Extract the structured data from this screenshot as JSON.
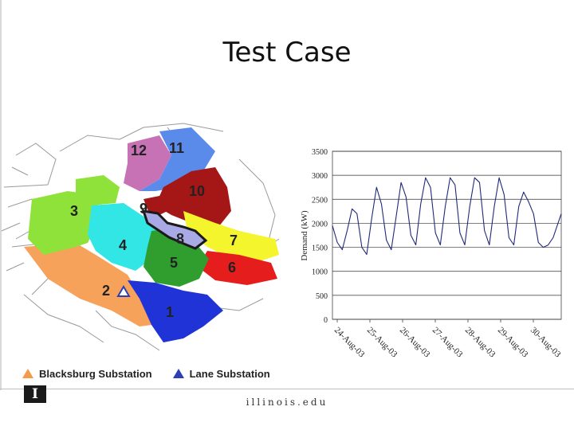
{
  "slide": {
    "title": "Test Case"
  },
  "map": {
    "zone_labels": [
      "1",
      "2",
      "3",
      "4",
      "5",
      "6",
      "7",
      "8",
      "9",
      "10",
      "11",
      "12"
    ],
    "legend": [
      {
        "label": "Blacksburg Substation",
        "color": "#f49a4a"
      },
      {
        "label": "Lane Substation",
        "color": "#2a3fb8"
      }
    ],
    "zone_colors": {
      "z1": "#1f33d6",
      "z2": "#f6a25a",
      "z3": "#8fe23a",
      "z4": "#33e6e6",
      "z5": "#2f9e2f",
      "z6": "#e51d1d",
      "z7": "#f5f52d",
      "z8": "#a9a9e6",
      "z9": "#8b8bd0",
      "z10": "#a51717",
      "z11": "#5b8bea",
      "z12": "#c772b5"
    }
  },
  "chart_data": {
    "type": "line",
    "title": "",
    "xlabel": "",
    "ylabel": "Demand (kW)",
    "ylim": [
      0,
      3500
    ],
    "yticks": [
      0,
      500,
      1000,
      1500,
      2000,
      2500,
      3000,
      3500
    ],
    "x_tick_labels": [
      "24-Aug-03",
      "25-Aug-03",
      "26-Aug-03",
      "27-Aug-03",
      "28-Aug-03",
      "29-Aug-03",
      "30-Aug-03"
    ],
    "grid": "horizontal",
    "line_color": "#1f2a78",
    "series": [
      {
        "x_days": [
          0,
          0.15,
          0.3,
          0.45,
          0.6,
          0.75,
          0.9,
          1.05,
          1.2,
          1.35,
          1.5,
          1.65,
          1.8,
          1.95,
          2.1,
          2.25,
          2.4,
          2.55,
          2.7,
          2.85,
          3.0,
          3.15,
          3.3,
          3.45,
          3.6,
          3.75,
          3.9,
          4.05,
          4.2,
          4.35,
          4.5,
          4.65,
          4.8,
          4.95,
          5.1,
          5.25,
          5.4,
          5.55,
          5.7,
          5.85,
          6.0,
          6.15,
          6.3,
          6.45,
          6.6,
          6.75,
          6.9,
          7.05
        ],
        "values": [
          1950,
          1600,
          1450,
          1850,
          2300,
          2200,
          1500,
          1350,
          2100,
          2750,
          2400,
          1650,
          1450,
          2150,
          2850,
          2550,
          1750,
          1550,
          2400,
          2950,
          2750,
          1800,
          1550,
          2350,
          2950,
          2800,
          1800,
          1550,
          2350,
          2950,
          2850,
          1850,
          1550,
          2350,
          2950,
          2600,
          1700,
          1550,
          2350,
          2650,
          2450,
          2200,
          1600,
          1500,
          1550,
          1700,
          2000,
          2200
        ]
      }
    ]
  },
  "footer": {
    "logo_text": "I",
    "institution": "illinois.edu"
  }
}
